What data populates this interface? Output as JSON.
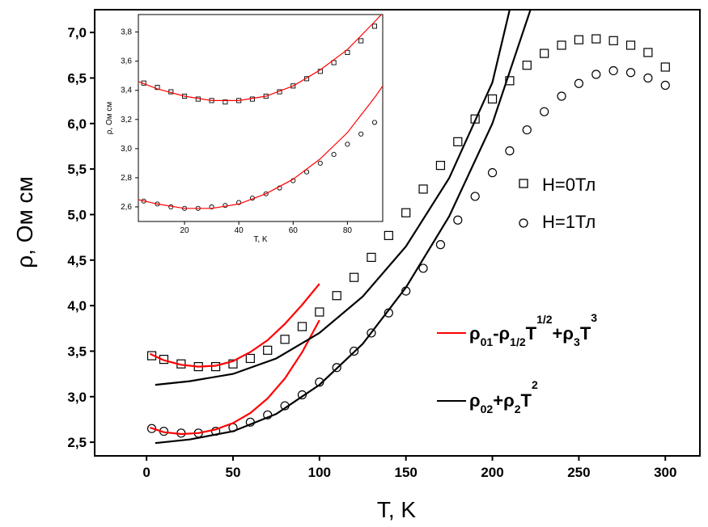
{
  "chart_data": [
    {
      "type": "scatter",
      "title": "",
      "xlabel": "T, K",
      "ylabel": "ρ, Ом см",
      "xlim": [
        -30,
        320
      ],
      "ylim": [
        2.35,
        7.25
      ],
      "x_ticks": [
        "0",
        "50",
        "100",
        "150",
        "200",
        "250",
        "300"
      ],
      "y_ticks": [
        "2,5",
        "3,0",
        "3,5",
        "4,0",
        "4,5",
        "5,0",
        "5,5",
        "6,0",
        "6,5",
        "7,0"
      ],
      "legend_position": "right",
      "series": [
        {
          "name": "H=0Тл",
          "marker": "square",
          "x": [
            3,
            10,
            20,
            30,
            40,
            50,
            60,
            70,
            80,
            90,
            100,
            110,
            120,
            130,
            140,
            150,
            160,
            170,
            180,
            190,
            200,
            210,
            220,
            230,
            240,
            250,
            260,
            270,
            280,
            290,
            300
          ],
          "y": [
            3.45,
            3.41,
            3.36,
            3.33,
            3.33,
            3.36,
            3.42,
            3.51,
            3.63,
            3.77,
            3.93,
            4.11,
            4.31,
            4.53,
            4.77,
            5.02,
            5.28,
            5.54,
            5.8,
            6.05,
            6.27,
            6.47,
            6.64,
            6.77,
            6.86,
            6.92,
            6.93,
            6.91,
            6.86,
            6.78,
            6.62
          ]
        },
        {
          "name": "H=1Тл",
          "marker": "circle",
          "x": [
            3,
            10,
            20,
            30,
            40,
            50,
            60,
            70,
            80,
            90,
            100,
            110,
            120,
            130,
            140,
            150,
            160,
            170,
            180,
            190,
            200,
            210,
            220,
            230,
            240,
            250,
            260,
            270,
            280,
            290,
            300
          ],
          "y": [
            2.65,
            2.62,
            2.6,
            2.6,
            2.62,
            2.66,
            2.72,
            2.8,
            2.9,
            3.02,
            3.16,
            3.32,
            3.5,
            3.7,
            3.92,
            4.16,
            4.41,
            4.67,
            4.94,
            5.2,
            5.46,
            5.7,
            5.93,
            6.13,
            6.3,
            6.44,
            6.54,
            6.58,
            6.56,
            6.5,
            6.42
          ]
        },
        {
          "name": "ρ01-ρ1/2T^1/2+ρ3T^3",
          "line_color": "#ff0000",
          "x": [
            2,
            10,
            20,
            30,
            40,
            50,
            60,
            70,
            80,
            90,
            100
          ],
          "y": [
            3.47,
            3.4,
            3.35,
            3.33,
            3.34,
            3.39,
            3.49,
            3.62,
            3.8,
            4.01,
            4.24
          ]
        },
        {
          "name": "ρ01-ρ1/2T^1/2+ρ3T^3 (H=1Тл)",
          "line_color": "#ff0000",
          "x": [
            2,
            10,
            20,
            30,
            40,
            50,
            60,
            70,
            80,
            90,
            100
          ],
          "y": [
            2.66,
            2.61,
            2.59,
            2.6,
            2.64,
            2.71,
            2.82,
            2.98,
            3.2,
            3.49,
            3.84
          ]
        },
        {
          "name": "ρ02+ρ2T^2",
          "line_color": "#000000",
          "x": [
            5,
            25,
            50,
            75,
            100,
            125,
            150,
            175,
            200,
            210
          ],
          "y": [
            3.13,
            3.17,
            3.25,
            3.42,
            3.7,
            4.1,
            4.65,
            5.4,
            6.45,
            7.25
          ]
        },
        {
          "name": "ρ02+ρ2T^2 (H=1Тл)",
          "line_color": "#000000",
          "x": [
            5,
            25,
            50,
            75,
            100,
            125,
            150,
            175,
            200,
            222
          ],
          "y": [
            2.49,
            2.53,
            2.62,
            2.81,
            3.13,
            3.58,
            4.2,
            4.98,
            6.0,
            7.25
          ]
        }
      ]
    },
    {
      "type": "scatter",
      "title": "",
      "inset": true,
      "xlabel": "T, K",
      "ylabel": "ρ, Ом см",
      "xlim": [
        3,
        93
      ],
      "ylim": [
        2.5,
        3.92
      ],
      "x_ticks": [
        "20",
        "40",
        "60",
        "80"
      ],
      "y_ticks": [
        "2,6",
        "2,8",
        "3,0",
        "3,2",
        "3,4",
        "3,6",
        "3,8"
      ],
      "series": [
        {
          "name": "H=0Тл",
          "marker": "square",
          "x": [
            5,
            10,
            15,
            20,
            25,
            30,
            35,
            40,
            45,
            50,
            55,
            60,
            65,
            70,
            75,
            80,
            85,
            90
          ],
          "y": [
            3.45,
            3.42,
            3.39,
            3.36,
            3.34,
            3.33,
            3.32,
            3.33,
            3.34,
            3.36,
            3.39,
            3.43,
            3.48,
            3.53,
            3.59,
            3.66,
            3.74,
            3.84
          ]
        },
        {
          "name": "H=1Тл",
          "marker": "circle",
          "x": [
            5,
            10,
            15,
            20,
            25,
            30,
            35,
            40,
            45,
            50,
            55,
            60,
            65,
            70,
            75,
            80,
            85,
            90
          ],
          "y": [
            2.64,
            2.62,
            2.6,
            2.59,
            2.59,
            2.6,
            2.61,
            2.63,
            2.66,
            2.69,
            2.73,
            2.78,
            2.84,
            2.9,
            2.96,
            3.03,
            3.1,
            3.18
          ]
        },
        {
          "name": "fit H=0Тл",
          "line_color": "#ff0000",
          "x": [
            3,
            10,
            20,
            30,
            40,
            50,
            60,
            70,
            80,
            90,
            93
          ],
          "y": [
            3.46,
            3.41,
            3.36,
            3.33,
            3.33,
            3.36,
            3.43,
            3.54,
            3.68,
            3.87,
            3.93
          ]
        },
        {
          "name": "fit H=1Тл",
          "line_color": "#ff0000",
          "x": [
            3,
            10,
            20,
            30,
            40,
            50,
            60,
            70,
            80,
            90,
            93
          ],
          "y": [
            2.65,
            2.62,
            2.59,
            2.59,
            2.62,
            2.69,
            2.79,
            2.93,
            3.11,
            3.35,
            3.43
          ]
        }
      ]
    }
  ],
  "legend": {
    "h0": "H=0Тл",
    "h1": "H=1Тл"
  },
  "formulas": {
    "fit1": {
      "a": "ρ",
      "a_sub": "01",
      "dash": "-",
      "b": "ρ",
      "b_sub": "1/2",
      "c": "T",
      "c_sup": "1/2",
      "plus": "+",
      "d": "ρ",
      "d_sub": "3",
      "e": "T",
      "e_sup": "3"
    },
    "fit2": {
      "a": "ρ",
      "a_sub": "02",
      "plus": "+",
      "b": "ρ",
      "b_sub": "2",
      "c": "T",
      "c_sup": "2"
    }
  },
  "colors": {
    "fit_line": "#ff0000",
    "model_line": "#000000",
    "marker": "#000000"
  }
}
